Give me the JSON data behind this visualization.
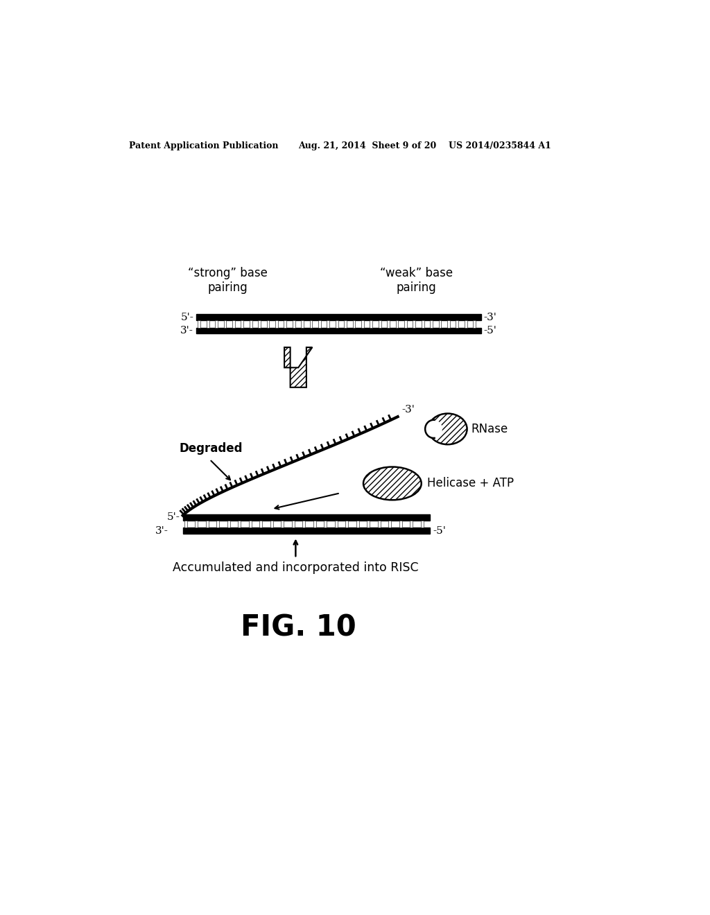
{
  "bg_color": "#ffffff",
  "header_left": "Patent Application Publication",
  "header_mid": "Aug. 21, 2014  Sheet 9 of 20",
  "header_right": "US 2014/0235844 A1",
  "fig_label": "FIG. 10",
  "label_strong": "“strong” base\npairing",
  "label_weak": "“weak” base\npairing",
  "label_degraded": "Degraded",
  "label_rnase": "RNase",
  "label_helicase": "Helicase + ATP",
  "label_accumulated": "Accumulated and incorporated into RISC"
}
